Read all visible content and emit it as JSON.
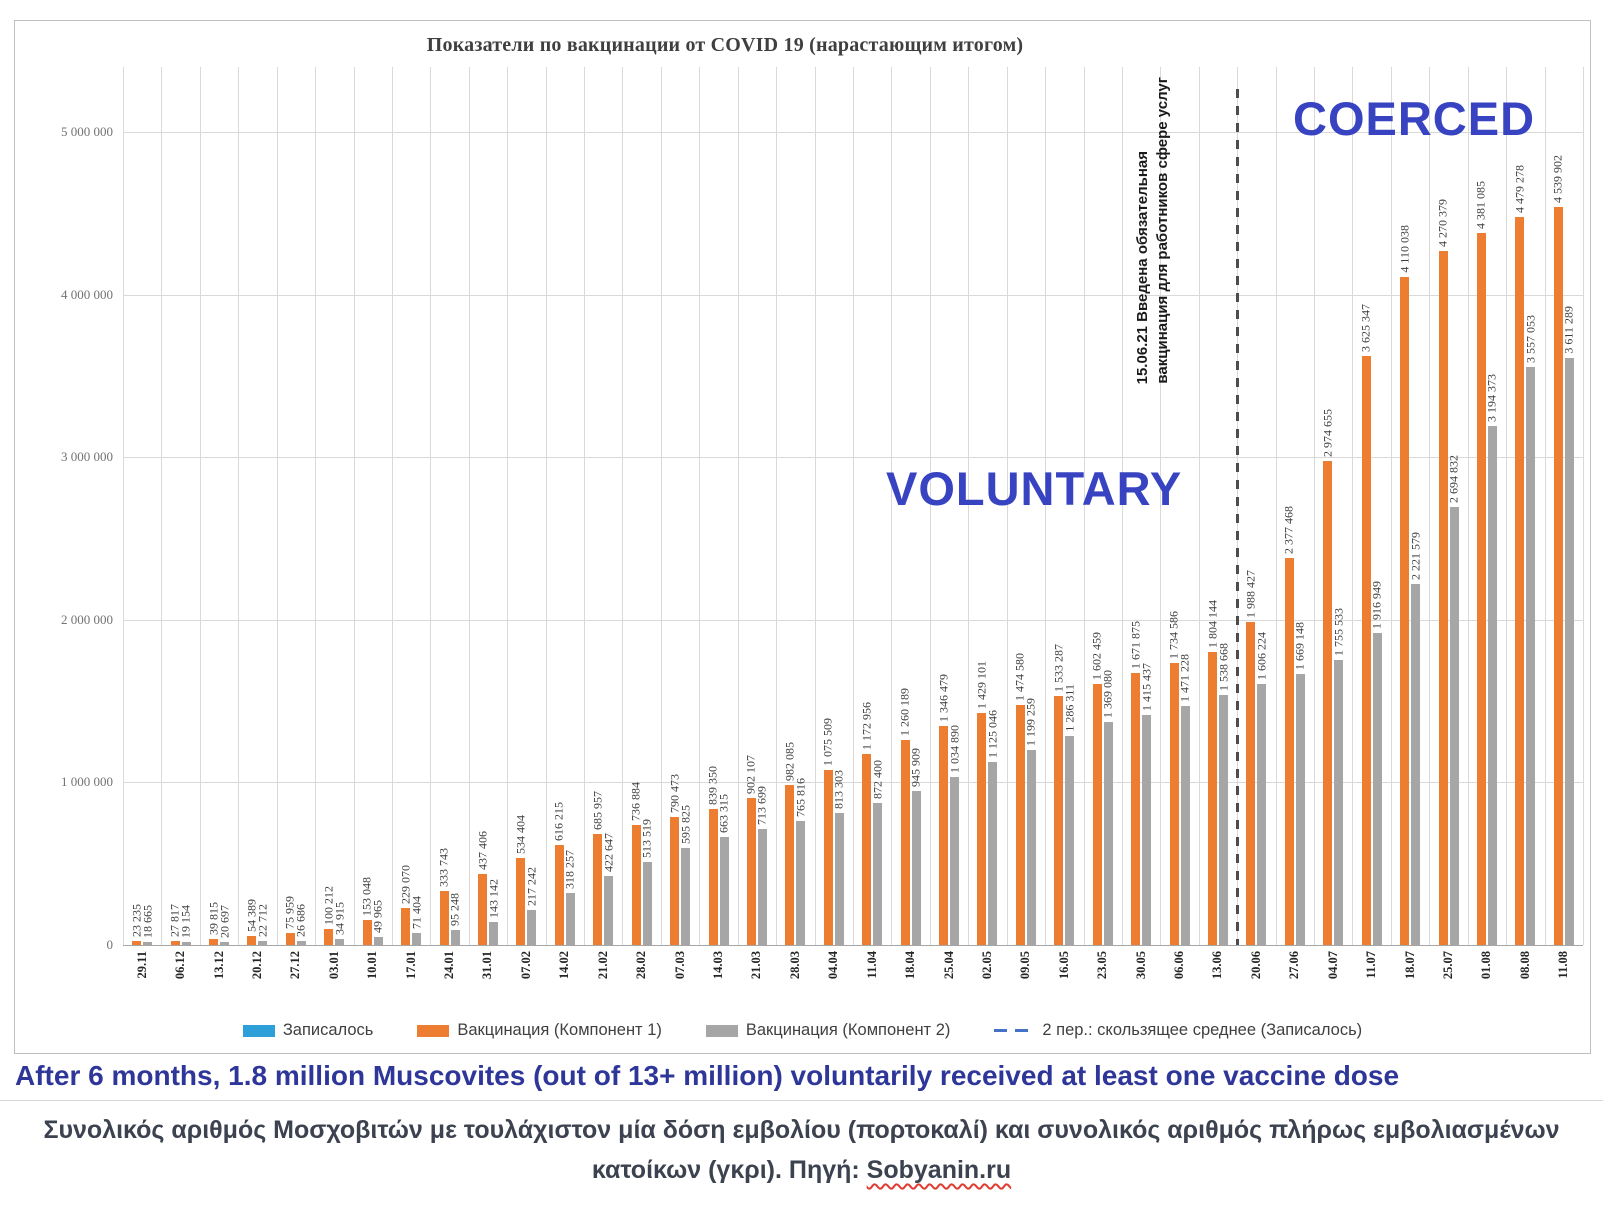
{
  "chart": {
    "title": "Показатели по вакцинации от COVID 19 (нарастающим итогом)",
    "y_ticks": [
      "0",
      "1 000 000",
      "2 000 000",
      "3 000 000",
      "4 000 000",
      "5 000 000"
    ],
    "voluntary_label": "VOLUNTARY",
    "coerced_label": "COERCED",
    "annotation_line1": "15.06.21 Введена обязательная",
    "annotation_line2": "вакцинация для работников сфере услуг",
    "legend": [
      {
        "label": "Записалось",
        "color": "#2d9fd9",
        "type": "swatch"
      },
      {
        "label": "Вакцинация (Компонент 1)",
        "color": "#ed7d31",
        "type": "swatch"
      },
      {
        "label": "Вакцинация (Компонент 2)",
        "color": "#a6a6a6",
        "type": "swatch"
      },
      {
        "label": "2 пер.: скользящее среднее (Записалось)",
        "color": "#4472c4",
        "type": "dash"
      }
    ]
  },
  "chart_data": {
    "type": "bar",
    "title": "Показатели по вакцинации от COVID 19 (нарастающим итогом)",
    "xlabel": "",
    "ylabel": "",
    "ylim": [
      0,
      5000000
    ],
    "grid": true,
    "legend_position": "bottom",
    "divider_after_category": "13.06",
    "categories": [
      "29.11",
      "06.12",
      "13.12",
      "20.12",
      "27.12",
      "03.01",
      "10.01",
      "17.01",
      "24.01",
      "31.01",
      "07.02",
      "14.02",
      "21.02",
      "28.02",
      "07.03",
      "14.03",
      "21.03",
      "28.03",
      "04.04",
      "11.04",
      "18.04",
      "25.04",
      "02.05",
      "09.05",
      "16.05",
      "23.05",
      "30.05",
      "06.06",
      "13.06",
      "20.06",
      "27.06",
      "04.07",
      "11.07",
      "18.07",
      "25.07",
      "01.08",
      "08.08",
      "11.08"
    ],
    "series": [
      {
        "name": "Вакцинация (Компонент 1)",
        "color": "#ed7d31",
        "values": [
          23235,
          27817,
          39815,
          54389,
          75959,
          100212,
          153048,
          229070,
          333743,
          437406,
          534404,
          616215,
          685957,
          736884,
          790473,
          839350,
          902107,
          982085,
          1075509,
          1172956,
          1260189,
          1346479,
          1429101,
          1474580,
          1533287,
          1602459,
          1671875,
          1734586,
          1804144,
          1988427,
          2377468,
          2974655,
          3625347,
          4110038,
          4270379,
          4381085,
          4479278,
          4539902
        ]
      },
      {
        "name": "Вакцинация (Компонент 2)",
        "color": "#a6a6a6",
        "values": [
          18665,
          19154,
          20697,
          22712,
          26686,
          34915,
          49965,
          71404,
          95248,
          143142,
          217242,
          318257,
          422647,
          513519,
          595825,
          663315,
          713699,
          765816,
          813303,
          872400,
          945909,
          1034890,
          1125046,
          1199259,
          1286311,
          1369080,
          1415437,
          1471228,
          1538668,
          1606224,
          1669148,
          1755533,
          1916949,
          2221579,
          2694832,
          3194373,
          3557053,
          3611289
        ]
      }
    ]
  },
  "captions": {
    "english": "After 6 months, 1.8 million Muscovites (out of 13+ million) voluntarily received at least one vaccine dose",
    "greek_line1": "Συνολικός αριθμός Μοσχοβιτών με τουλάχιστον μία δόση εμβολίου (πορτοκαλί) και συνολικός αριθμός πλήρως εμβολιασμένων",
    "greek_line2_prefix": "κατοίκων (γκρι). Πηγή: ",
    "source": "Sobyanin.ru"
  }
}
